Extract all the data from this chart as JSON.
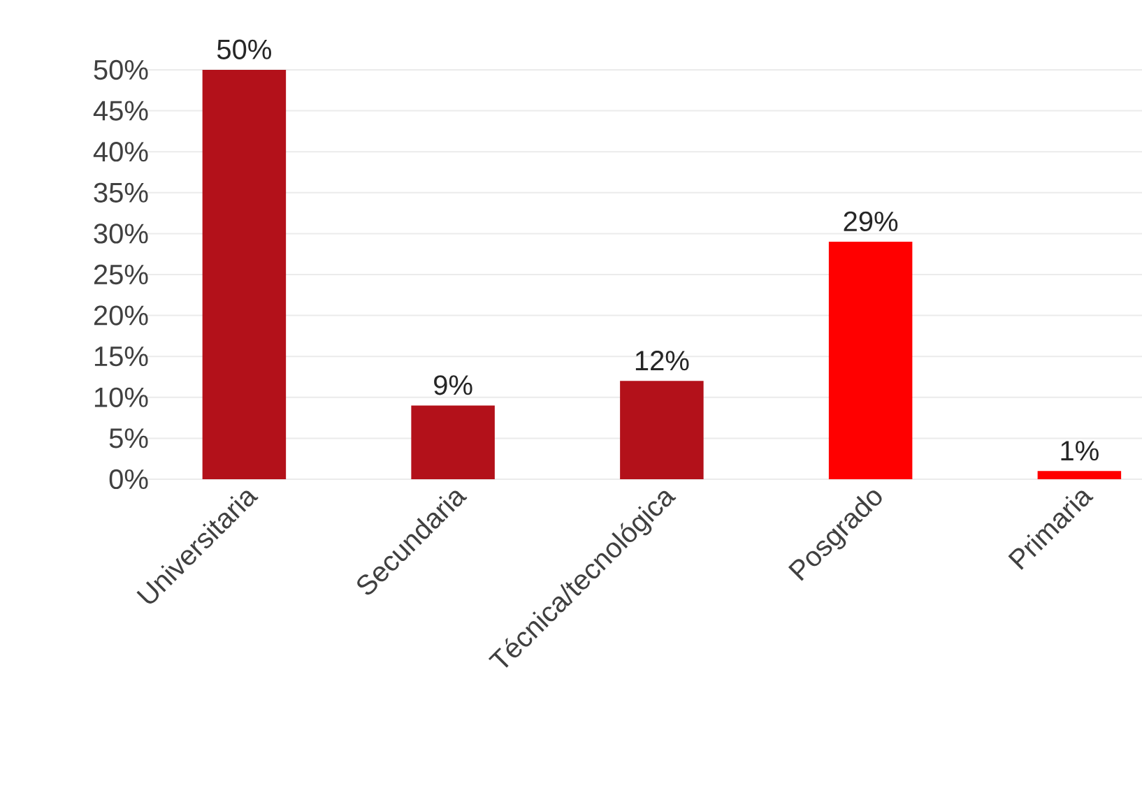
{
  "chart_data": {
    "type": "bar",
    "categories": [
      "Universitaria",
      "Secundaria",
      "Técnica/tecnológica",
      "Posgrado",
      "Primaria"
    ],
    "values": [
      50,
      9,
      12,
      29,
      1
    ],
    "value_labels": [
      "50%",
      "9%",
      "12%",
      "29%",
      "1%"
    ],
    "colors": [
      "#b3111a",
      "#b3111a",
      "#b3111a",
      "#ff0000",
      "#ff0000"
    ],
    "ylim": [
      0,
      50
    ],
    "yticks": [
      {
        "value": 0,
        "label": "0%"
      },
      {
        "value": 5,
        "label": "5%"
      },
      {
        "value": 10,
        "label": "10%"
      },
      {
        "value": 15,
        "label": "15%"
      },
      {
        "value": 20,
        "label": "20%"
      },
      {
        "value": 25,
        "label": "25%"
      },
      {
        "value": 30,
        "label": "30%"
      },
      {
        "value": 35,
        "label": "35%"
      },
      {
        "value": 40,
        "label": "40%"
      },
      {
        "value": 45,
        "label": "45%"
      },
      {
        "value": 50,
        "label": "50%"
      }
    ],
    "grid": "y"
  }
}
